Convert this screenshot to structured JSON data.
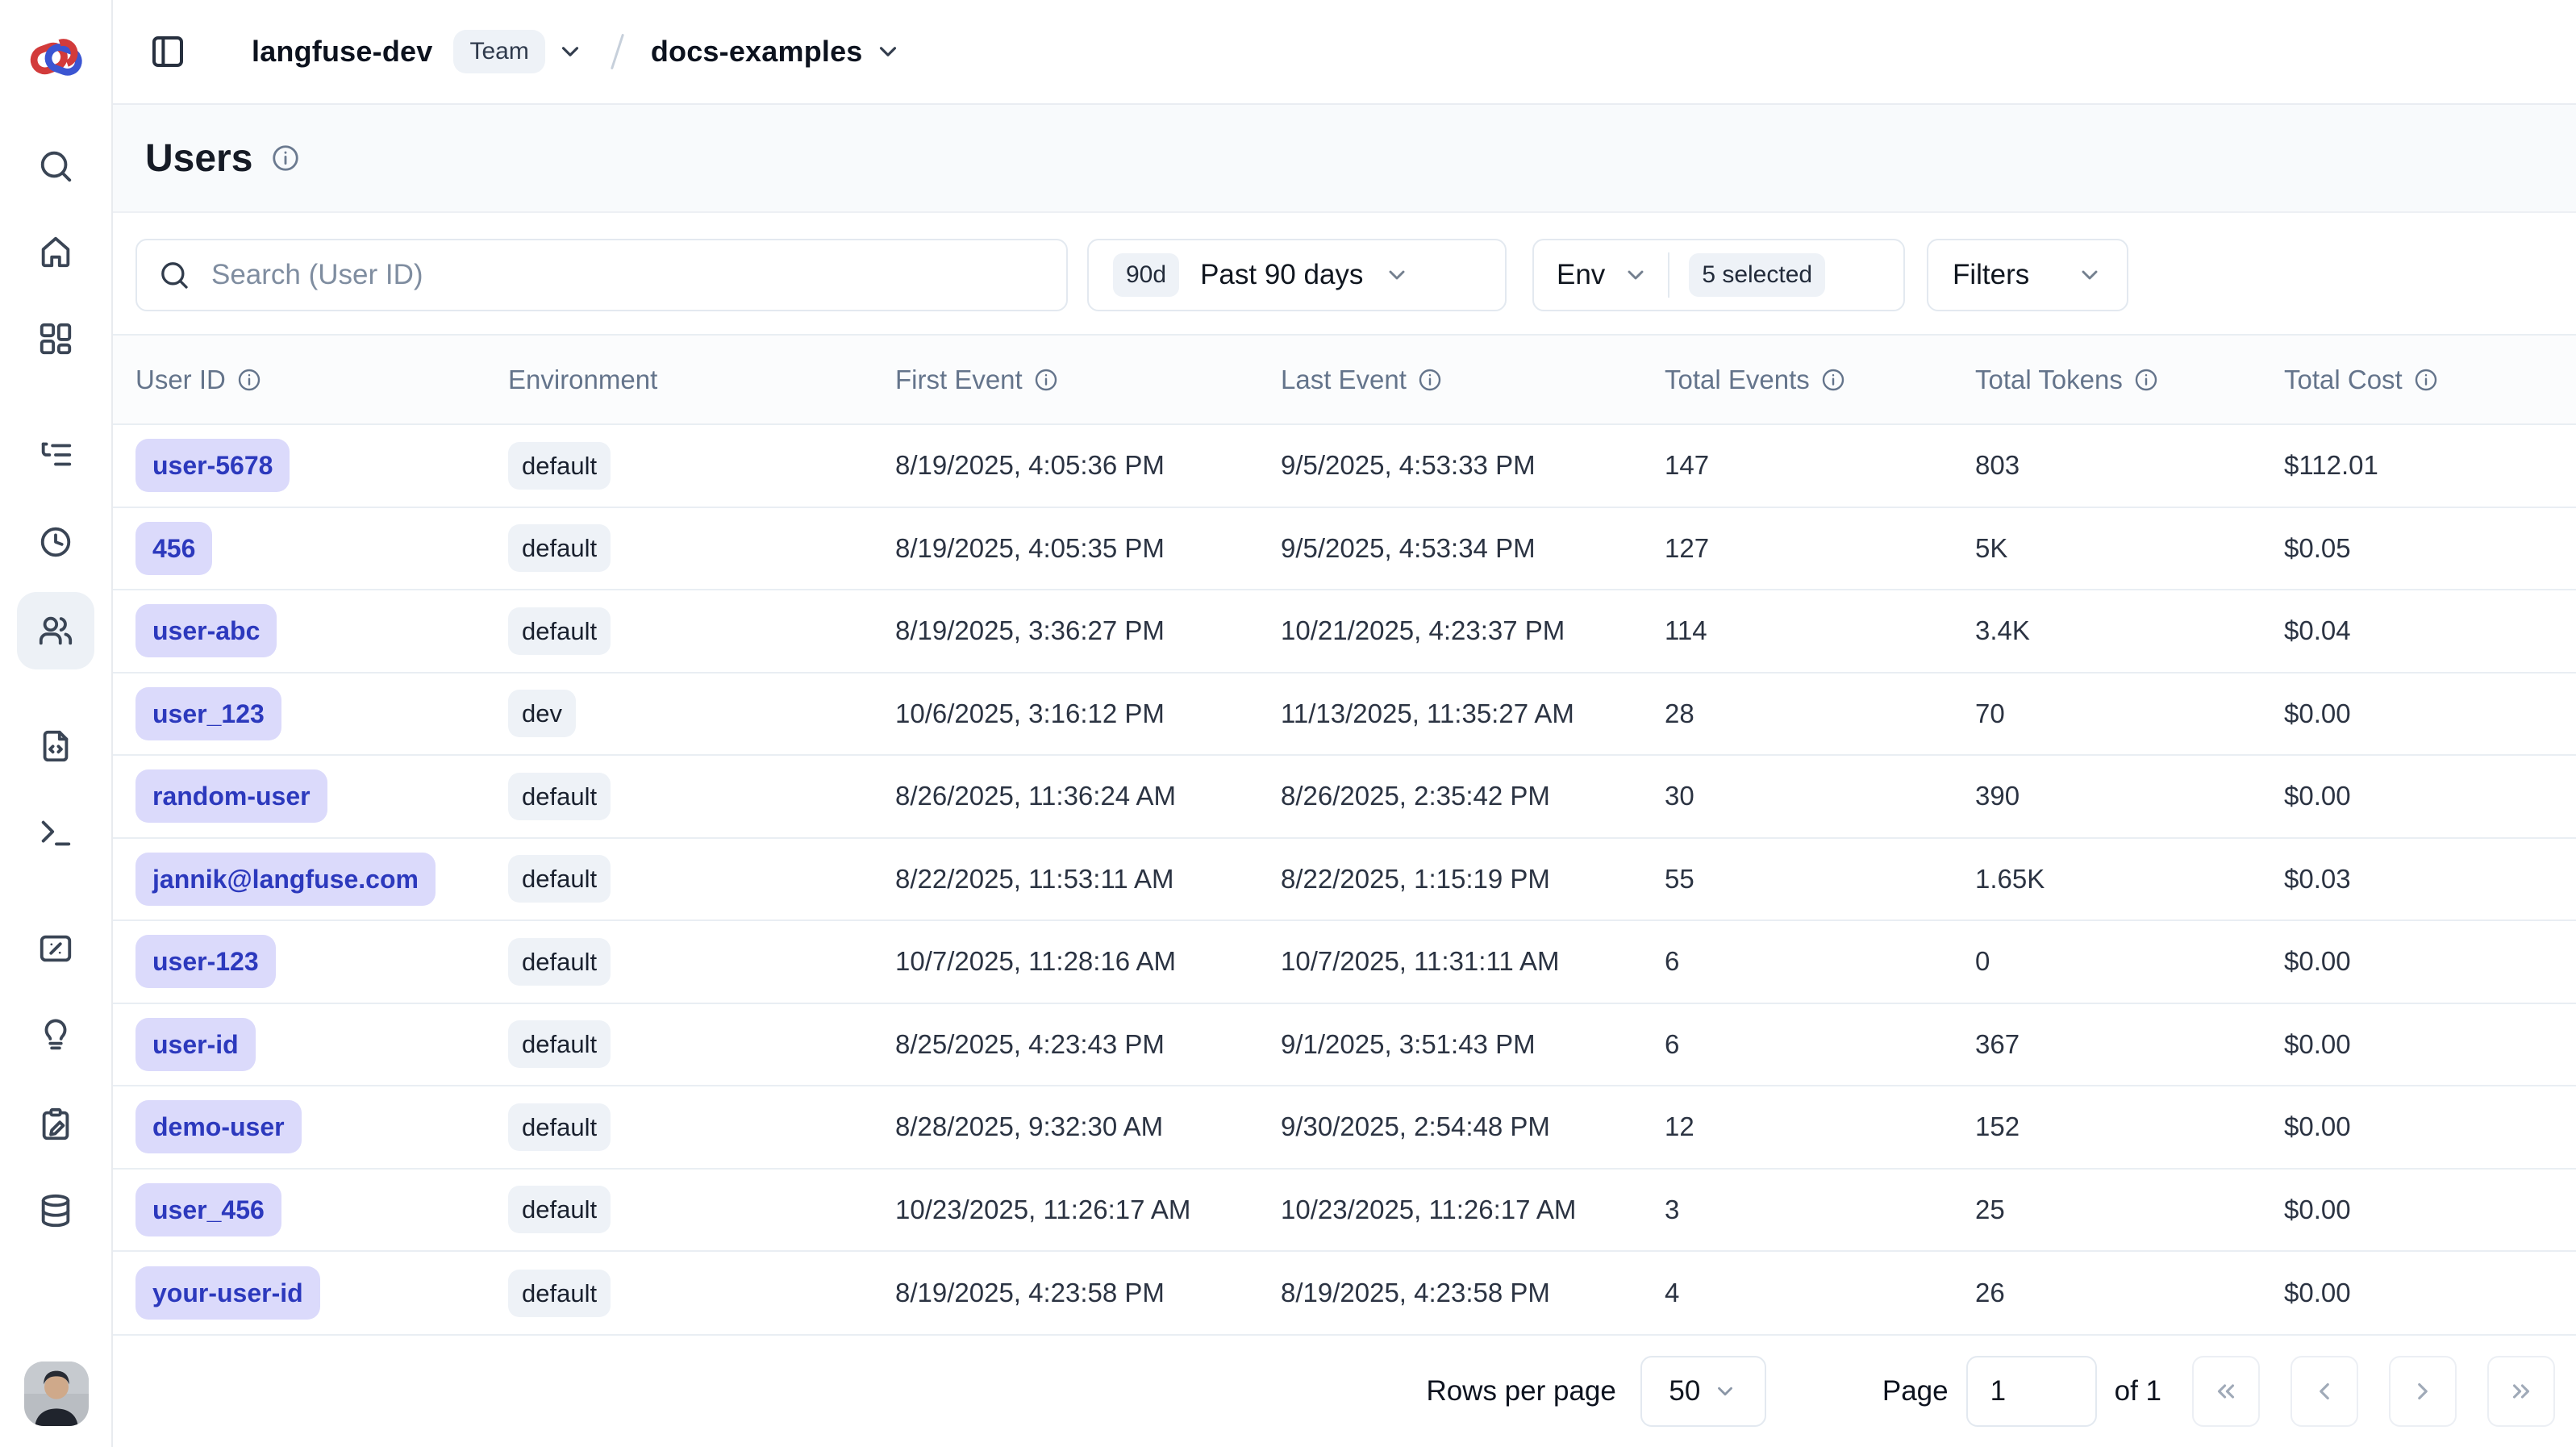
{
  "topbar": {
    "org_name": "langfuse-dev",
    "org_type_badge": "Team",
    "project_name": "docs-examples"
  },
  "sidebar": {
    "icons": [
      "search",
      "home",
      "dashboards",
      "tracing",
      "sessions",
      "users",
      "prompts",
      "playground",
      "scores",
      "evaluators",
      "annotation-queues",
      "datasets"
    ],
    "active": "users"
  },
  "page": {
    "title": "Users"
  },
  "toolbar": {
    "search_placeholder": "Search (User ID)",
    "date_range": {
      "badge": "90d",
      "label": "Past 90 days"
    },
    "environment": {
      "label": "Env",
      "selected": "5 selected"
    },
    "filters_label": "Filters"
  },
  "table": {
    "columns": [
      {
        "label": "User ID",
        "info": true
      },
      {
        "label": "Environment",
        "info": false
      },
      {
        "label": "First Event",
        "info": true
      },
      {
        "label": "Last Event",
        "info": true
      },
      {
        "label": "Total Events",
        "info": true
      },
      {
        "label": "Total Tokens",
        "info": true
      },
      {
        "label": "Total Cost",
        "info": true
      }
    ],
    "row_keys": [
      "user_id",
      "environment",
      "first_event",
      "last_event",
      "total_events",
      "total_tokens",
      "total_cost"
    ],
    "rows": [
      {
        "user_id": "user-5678",
        "environment": "default",
        "first_event": "8/19/2025, 4:05:36 PM",
        "last_event": "9/5/2025, 4:53:33 PM",
        "total_events": "147",
        "total_tokens": "803",
        "total_cost": "$112.01"
      },
      {
        "user_id": "456",
        "environment": "default",
        "first_event": "8/19/2025, 4:05:35 PM",
        "last_event": "9/5/2025, 4:53:34 PM",
        "total_events": "127",
        "total_tokens": "5K",
        "total_cost": "$0.05"
      },
      {
        "user_id": "user-abc",
        "environment": "default",
        "first_event": "8/19/2025, 3:36:27 PM",
        "last_event": "10/21/2025, 4:23:37 PM",
        "total_events": "114",
        "total_tokens": "3.4K",
        "total_cost": "$0.04"
      },
      {
        "user_id": "user_123",
        "environment": "dev",
        "first_event": "10/6/2025, 3:16:12 PM",
        "last_event": "11/13/2025, 11:35:27 AM",
        "total_events": "28",
        "total_tokens": "70",
        "total_cost": "$0.00"
      },
      {
        "user_id": "random-user",
        "environment": "default",
        "first_event": "8/26/2025, 11:36:24 AM",
        "last_event": "8/26/2025, 2:35:42 PM",
        "total_events": "30",
        "total_tokens": "390",
        "total_cost": "$0.00"
      },
      {
        "user_id": "jannik@langfuse.com",
        "environment": "default",
        "first_event": "8/22/2025, 11:53:11 AM",
        "last_event": "8/22/2025, 1:15:19 PM",
        "total_events": "55",
        "total_tokens": "1.65K",
        "total_cost": "$0.03"
      },
      {
        "user_id": "user-123",
        "environment": "default",
        "first_event": "10/7/2025, 11:28:16 AM",
        "last_event": "10/7/2025, 11:31:11 AM",
        "total_events": "6",
        "total_tokens": "0",
        "total_cost": "$0.00"
      },
      {
        "user_id": "user-id",
        "environment": "default",
        "first_event": "8/25/2025, 4:23:43 PM",
        "last_event": "9/1/2025, 3:51:43 PM",
        "total_events": "6",
        "total_tokens": "367",
        "total_cost": "$0.00"
      },
      {
        "user_id": "demo-user",
        "environment": "default",
        "first_event": "8/28/2025, 9:32:30 AM",
        "last_event": "9/30/2025, 2:54:48 PM",
        "total_events": "12",
        "total_tokens": "152",
        "total_cost": "$0.00"
      },
      {
        "user_id": "user_456",
        "environment": "default",
        "first_event": "10/23/2025, 11:26:17 AM",
        "last_event": "10/23/2025, 11:26:17 AM",
        "total_events": "3",
        "total_tokens": "25",
        "total_cost": "$0.00"
      },
      {
        "user_id": "your-user-id",
        "environment": "default",
        "first_event": "8/19/2025, 4:23:58 PM",
        "last_event": "8/19/2025, 4:23:58 PM",
        "total_events": "4",
        "total_tokens": "26",
        "total_cost": "$0.00"
      }
    ]
  },
  "pagination": {
    "rows_per_page_label": "Rows per page",
    "rows_per_page": "50",
    "page_label": "Page",
    "current_page": "1",
    "total_pages_label": "of 1"
  },
  "colors": {
    "user_badge_bg": "#dbdafb",
    "user_badge_text": "#2c39bd",
    "env_badge_bg": "#eef2f7",
    "active_nav_bg": "#edf1f6",
    "page_head_bg": "#f8fafc",
    "border": "#e9eef3",
    "logo_red": "#d23b3b",
    "logo_blue": "#3b55d2"
  }
}
